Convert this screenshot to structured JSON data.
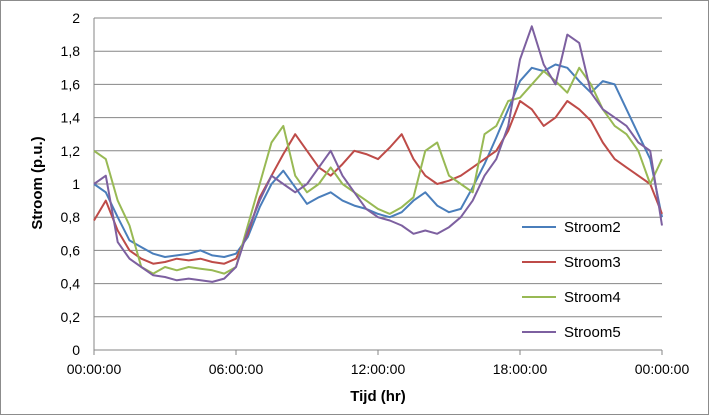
{
  "chart_data": {
    "type": "line",
    "xlabel": "Tijd (hr)",
    "ylabel": "Stroom (p.u.)",
    "x_ticks": [
      "00:00:00",
      "06:00:00",
      "12:00:00",
      "18:00:00",
      "00:00:00"
    ],
    "x_tick_hours": [
      0,
      6,
      12,
      18,
      24
    ],
    "y_ticks": [
      "0",
      "0,2",
      "0,4",
      "0,6",
      "0,8",
      "1",
      "1,2",
      "1,4",
      "1,6",
      "1,8",
      "2"
    ],
    "ylim": [
      0,
      2
    ],
    "xlim": [
      0,
      24
    ],
    "grid": "horizontal",
    "legend_position": "right",
    "x_unit": "hours",
    "series": [
      {
        "name": "Stroom2",
        "color": "#4a7ebb",
        "x": [
          0,
          0.5,
          1,
          1.5,
          2,
          2.5,
          3,
          3.5,
          4,
          4.5,
          5,
          5.5,
          6,
          6.5,
          7,
          7.5,
          8,
          8.5,
          9,
          9.5,
          10,
          10.5,
          11,
          11.5,
          12,
          12.5,
          13,
          13.5,
          14,
          14.5,
          15,
          15.5,
          16,
          16.5,
          17,
          17.5,
          18,
          18.5,
          19,
          19.5,
          20,
          20.5,
          21,
          21.5,
          22,
          22.5,
          23,
          23.5,
          24
        ],
        "values": [
          1.0,
          0.95,
          0.8,
          0.66,
          0.62,
          0.58,
          0.56,
          0.57,
          0.58,
          0.6,
          0.57,
          0.56,
          0.58,
          0.68,
          0.86,
          1.0,
          1.08,
          0.98,
          0.88,
          0.92,
          0.95,
          0.9,
          0.87,
          0.85,
          0.82,
          0.8,
          0.83,
          0.9,
          0.95,
          0.87,
          0.83,
          0.85,
          0.98,
          1.12,
          1.28,
          1.45,
          1.62,
          1.7,
          1.68,
          1.72,
          1.7,
          1.62,
          1.55,
          1.62,
          1.6,
          1.45,
          1.3,
          1.15,
          0.8
        ]
      },
      {
        "name": "Stroom3",
        "color": "#be4b48",
        "x": [
          0,
          0.5,
          1,
          1.5,
          2,
          2.5,
          3,
          3.5,
          4,
          4.5,
          5,
          5.5,
          6,
          6.5,
          7,
          7.5,
          8,
          8.5,
          9,
          9.5,
          10,
          10.5,
          11,
          11.5,
          12,
          12.5,
          13,
          13.5,
          14,
          14.5,
          15,
          15.5,
          16,
          16.5,
          17,
          17.5,
          18,
          18.5,
          19,
          19.5,
          20,
          20.5,
          21,
          21.5,
          22,
          22.5,
          23,
          23.5,
          24
        ],
        "values": [
          0.78,
          0.9,
          0.72,
          0.6,
          0.55,
          0.52,
          0.53,
          0.55,
          0.54,
          0.55,
          0.53,
          0.52,
          0.55,
          0.7,
          0.92,
          1.05,
          1.18,
          1.3,
          1.2,
          1.1,
          1.05,
          1.12,
          1.2,
          1.18,
          1.15,
          1.22,
          1.3,
          1.15,
          1.05,
          1.0,
          1.02,
          1.05,
          1.1,
          1.15,
          1.2,
          1.32,
          1.5,
          1.45,
          1.35,
          1.4,
          1.5,
          1.45,
          1.38,
          1.25,
          1.15,
          1.1,
          1.05,
          1.0,
          0.82
        ]
      },
      {
        "name": "Stroom4",
        "color": "#98b954",
        "x": [
          0,
          0.5,
          1,
          1.5,
          2,
          2.5,
          3,
          3.5,
          4,
          4.5,
          5,
          5.5,
          6,
          6.5,
          7,
          7.5,
          8,
          8.5,
          9,
          9.5,
          10,
          10.5,
          11,
          11.5,
          12,
          12.5,
          13,
          13.5,
          14,
          14.5,
          15,
          15.5,
          16,
          16.5,
          17,
          17.5,
          18,
          18.5,
          19,
          19.5,
          20,
          20.5,
          21,
          21.5,
          22,
          22.5,
          23,
          23.5,
          24
        ],
        "values": [
          1.2,
          1.15,
          0.9,
          0.75,
          0.5,
          0.46,
          0.5,
          0.48,
          0.5,
          0.49,
          0.48,
          0.46,
          0.5,
          0.75,
          1.0,
          1.25,
          1.35,
          1.05,
          0.95,
          1.0,
          1.1,
          1.0,
          0.95,
          0.9,
          0.85,
          0.82,
          0.86,
          0.92,
          1.2,
          1.25,
          1.05,
          1.0,
          0.95,
          1.3,
          1.35,
          1.5,
          1.52,
          1.6,
          1.68,
          1.62,
          1.55,
          1.7,
          1.6,
          1.45,
          1.35,
          1.3,
          1.2,
          1.0,
          1.15
        ]
      },
      {
        "name": "Stroom5",
        "color": "#7d60a0",
        "x": [
          0,
          0.5,
          1,
          1.5,
          2,
          2.5,
          3,
          3.5,
          4,
          4.5,
          5,
          5.5,
          6,
          6.5,
          7,
          7.5,
          8,
          8.5,
          9,
          9.5,
          10,
          10.5,
          11,
          11.5,
          12,
          12.5,
          13,
          13.5,
          14,
          14.5,
          15,
          15.5,
          16,
          16.5,
          17,
          17.5,
          18,
          18.5,
          19,
          19.5,
          20,
          20.5,
          21,
          21.5,
          22,
          22.5,
          23,
          23.5,
          24
        ],
        "values": [
          1.0,
          1.05,
          0.65,
          0.55,
          0.5,
          0.45,
          0.44,
          0.42,
          0.43,
          0.42,
          0.41,
          0.43,
          0.5,
          0.72,
          0.9,
          1.05,
          1.0,
          0.95,
          1.0,
          1.1,
          1.2,
          1.05,
          0.95,
          0.85,
          0.8,
          0.78,
          0.75,
          0.7,
          0.72,
          0.7,
          0.74,
          0.8,
          0.9,
          1.05,
          1.15,
          1.35,
          1.75,
          1.95,
          1.72,
          1.6,
          1.9,
          1.85,
          1.55,
          1.45,
          1.4,
          1.35,
          1.25,
          1.2,
          0.75
        ]
      }
    ]
  }
}
